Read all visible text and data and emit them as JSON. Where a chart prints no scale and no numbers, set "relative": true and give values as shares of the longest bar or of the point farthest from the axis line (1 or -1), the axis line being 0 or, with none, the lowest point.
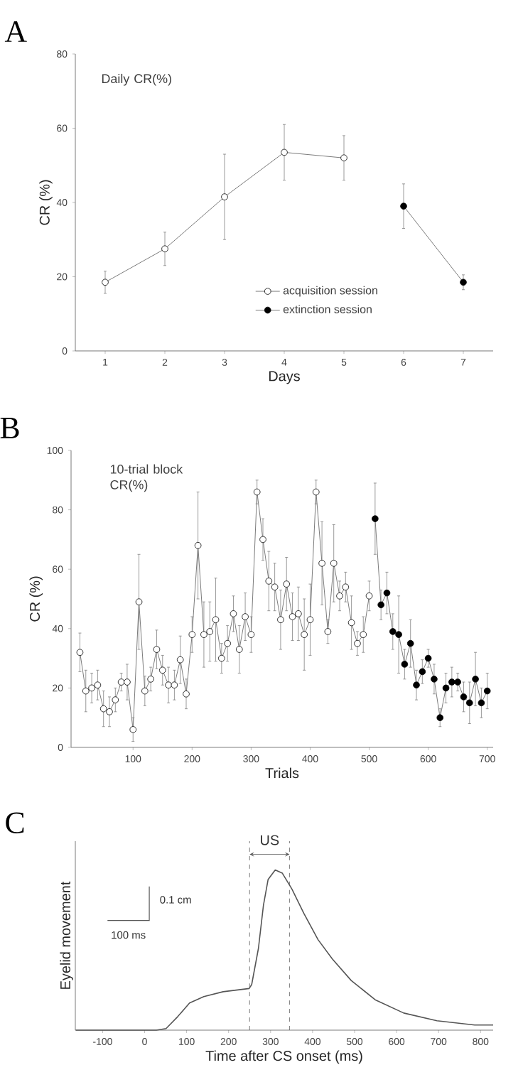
{
  "chart_data": [
    {
      "type": "line",
      "title": "A",
      "annotations": [
        "Daily CR(%)"
      ],
      "xlabel": "Days",
      "ylabel": "CR (%)",
      "xlim": [
        0.5,
        7.5
      ],
      "ylim": [
        0,
        80
      ],
      "xticks": [
        1,
        2,
        3,
        4,
        5,
        6,
        7
      ],
      "yticks": [
        0,
        20,
        40,
        60,
        80
      ],
      "marker": "circle",
      "legend": "bottom",
      "series": [
        {
          "name": "acquisition session",
          "color": "#ffffff",
          "x": [
            1,
            2,
            3,
            4,
            5
          ],
          "values": [
            18.5,
            27.5,
            41.5,
            53.5,
            52
          ],
          "errors": [
            3,
            4.5,
            11.5,
            7.5,
            6
          ]
        },
        {
          "name": "extinction session",
          "color": "#000000",
          "x": [
            6,
            7
          ],
          "values": [
            39,
            18.5
          ],
          "errors": [
            6,
            2
          ]
        }
      ]
    },
    {
      "type": "line",
      "title": "B",
      "annotations": [
        "10-trial block CR(%)"
      ],
      "xlabel": "Trials",
      "ylabel": "CR (%)",
      "xlim": [
        -5,
        710
      ],
      "ylim": [
        0,
        100
      ],
      "xticks": [
        100,
        200,
        300,
        400,
        500,
        600,
        700
      ],
      "yticks": [
        0,
        20,
        40,
        60,
        80,
        100
      ],
      "marker": "circle",
      "series": [
        {
          "color": "#ffffff",
          "x": [
            10,
            20,
            30,
            40,
            50,
            60,
            70,
            80,
            90,
            100,
            110,
            120,
            130,
            140,
            150,
            160,
            170,
            180,
            190,
            200,
            210,
            220,
            230,
            240,
            250,
            260,
            270,
            280,
            290,
            300,
            310,
            320,
            330,
            340,
            350,
            360,
            370,
            380,
            390,
            400,
            410,
            420,
            430,
            440,
            450,
            460,
            470,
            480,
            490,
            500
          ],
          "values": [
            32,
            19,
            20,
            21,
            13,
            12,
            16,
            22,
            22,
            6,
            49,
            19,
            23,
            33,
            26,
            21,
            21,
            29.5,
            18,
            38,
            68,
            38,
            39,
            43,
            30,
            35,
            45,
            33,
            44,
            38,
            86,
            70,
            56,
            54,
            43,
            55,
            44,
            45,
            38,
            43,
            86,
            62,
            39,
            62,
            51,
            54,
            42,
            35,
            38,
            51
          ],
          "errors": [
            6.5,
            7,
            5,
            5,
            6,
            5,
            4,
            3,
            6,
            4,
            16,
            5,
            4,
            6.5,
            5,
            6,
            5,
            8,
            5,
            6,
            18,
            11,
            10,
            14,
            5,
            6,
            6,
            8,
            8,
            6,
            4,
            7,
            10,
            8,
            10,
            9,
            8,
            9,
            12,
            12,
            4,
            14,
            4,
            13,
            5,
            5,
            9,
            4,
            6,
            5
          ]
        },
        {
          "color": "#000000",
          "x": [
            510,
            520,
            530,
            540,
            550,
            560,
            570,
            580,
            590,
            600,
            610,
            620,
            630,
            640,
            650,
            660,
            670,
            680,
            690,
            700
          ],
          "values": [
            77,
            48,
            52,
            39,
            38,
            28,
            35,
            21,
            25.5,
            30,
            23,
            10,
            20,
            22,
            22,
            17,
            15,
            23,
            15,
            19
          ],
          "errors": [
            12,
            5,
            7,
            6,
            13,
            5,
            8,
            5,
            4,
            3,
            5,
            3,
            5,
            5,
            3,
            5,
            7,
            9,
            5,
            6
          ]
        }
      ]
    },
    {
      "type": "line",
      "title": "C",
      "xlabel": "Time after CS onset (ms)",
      "ylabel": "Eyelid movement",
      "relative": true,
      "xlim": [
        -165,
        830
      ],
      "xticks": [
        -100,
        0,
        100,
        200,
        300,
        400,
        500,
        600,
        700,
        800
      ],
      "annotations": [
        "US",
        "0.1 cm",
        "100 ms"
      ],
      "ref_lines": [
        {
          "axis": "x",
          "value": 250,
          "line_style": "dashed"
        },
        {
          "axis": "x",
          "value": 345,
          "line_style": "dashed"
        }
      ],
      "series": [
        {
          "color": "#555555",
          "x": [
            -164,
            28,
            51,
            79,
            107,
            141,
            187,
            249,
            255,
            271,
            283,
            294,
            311,
            328,
            351,
            379,
            413,
            447,
            492,
            549,
            617,
            696,
            786,
            830
          ],
          "values": [
            0,
            0,
            0.01,
            0.085,
            0.17,
            0.21,
            0.24,
            0.26,
            0.285,
            0.51,
            0.78,
            0.94,
            1,
            0.98,
            0.88,
            0.73,
            0.565,
            0.445,
            0.31,
            0.19,
            0.107,
            0.059,
            0.032,
            0.032
          ]
        }
      ]
    }
  ]
}
